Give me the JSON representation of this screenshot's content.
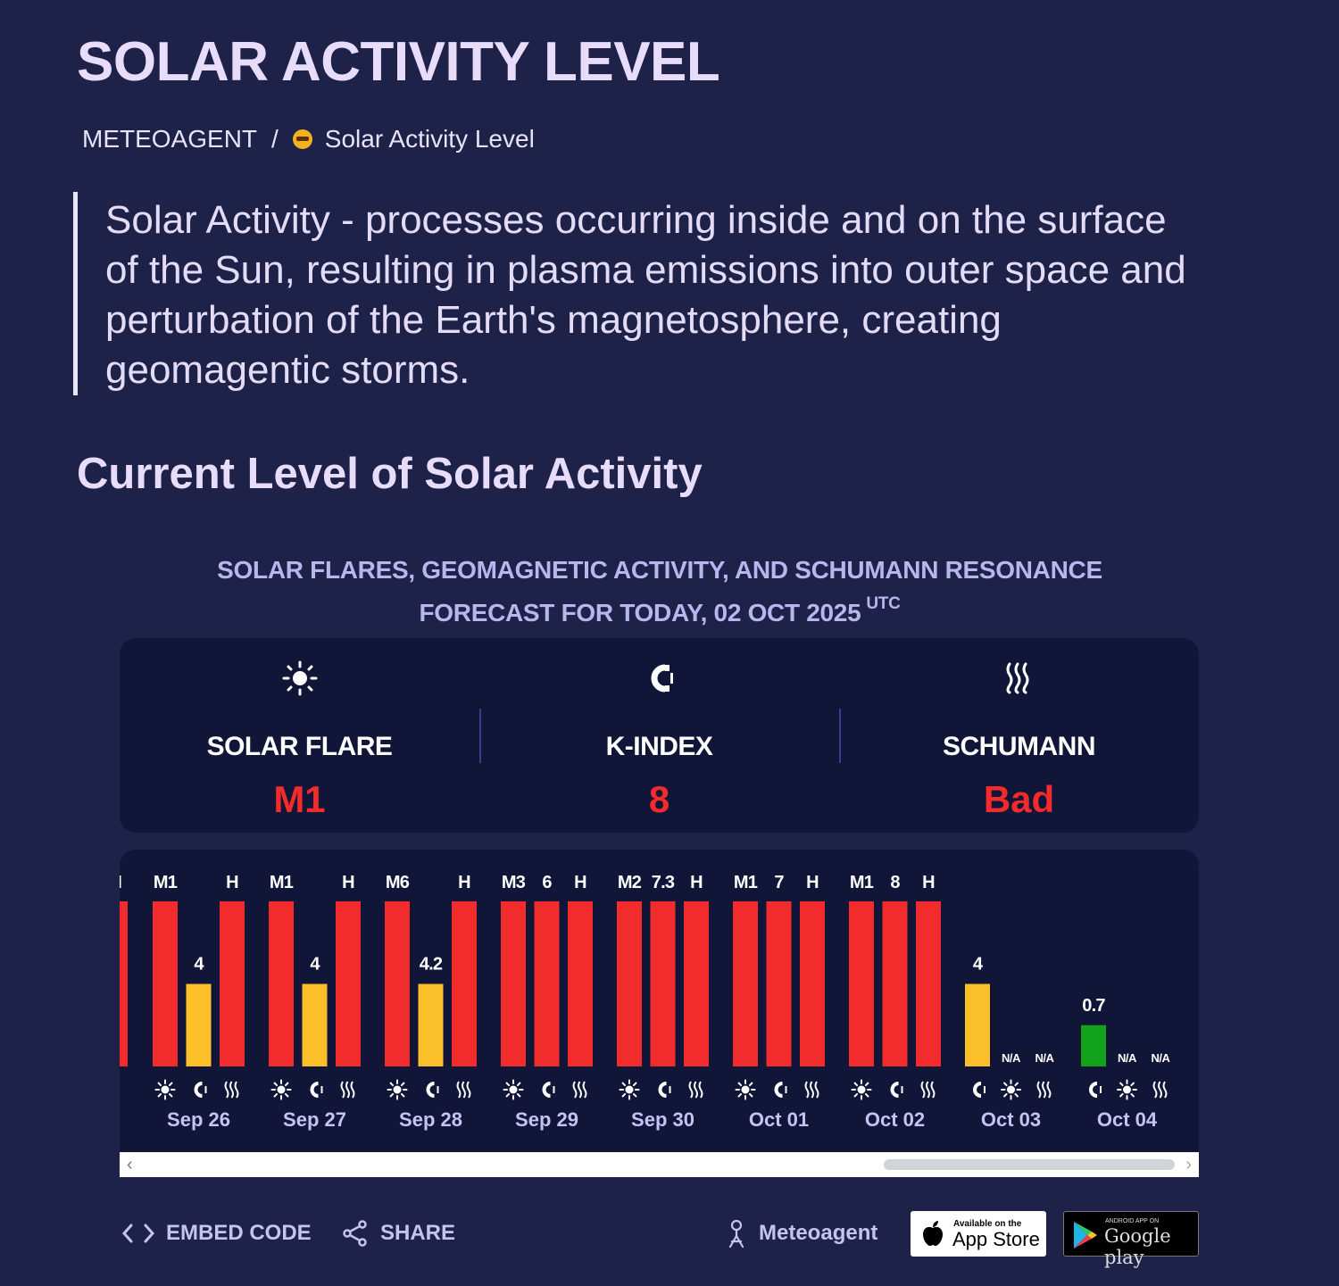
{
  "header": {
    "title": "SOLAR ACTIVITY LEVEL",
    "breadcrumb": [
      "METEOAGENT",
      "/",
      "Solar Activity Level"
    ]
  },
  "intro": "Solar Activity - processes occurring inside and on the surface of the Sun, resulting in plasma emissions into outer space and perturbation of the Earth's magnetosphere, creating geomagentic storms.",
  "section_title": "Current Level of Solar Activity",
  "forecast": {
    "title_line1": "SOLAR FLARES, GEOMAGNETIC ACTIVITY, AND SCHUMANN RESONANCE",
    "title_line2": "FORECAST FOR TODAY, 02 OCT 2025",
    "tz": "UTC"
  },
  "summary": [
    {
      "label": "SOLAR FLARE",
      "value": "M1",
      "icon": "sun-icon"
    },
    {
      "label": "K-INDEX",
      "value": "8",
      "icon": "magnet-icon"
    },
    {
      "label": "SCHUMANN",
      "value": "Bad",
      "icon": "waves-icon"
    }
  ],
  "chart_data": {
    "type": "bar",
    "series_types": [
      "solar-flare",
      "k-index",
      "schumann"
    ],
    "colors": {
      "high": "#f22c2c",
      "medium": "#fbbf2a",
      "low": "#13a31a",
      "label": "#ffffff",
      "text": "#c4c3f2"
    },
    "days": [
      {
        "date": "Sep 26",
        "bars": [
          {
            "kind": "solar-flare",
            "label": "M1",
            "level": 1.0,
            "color": "high"
          },
          {
            "kind": "k-index",
            "label": "4",
            "level": 0.5,
            "color": "medium"
          },
          {
            "kind": "schumann",
            "label": "H",
            "level": 1.0,
            "color": "high"
          }
        ]
      },
      {
        "date": "Sep 27",
        "bars": [
          {
            "kind": "solar-flare",
            "label": "M1",
            "level": 1.0,
            "color": "high"
          },
          {
            "kind": "k-index",
            "label": "4",
            "level": 0.5,
            "color": "medium"
          },
          {
            "kind": "schumann",
            "label": "H",
            "level": 1.0,
            "color": "high"
          }
        ]
      },
      {
        "date": "Sep 28",
        "bars": [
          {
            "kind": "solar-flare",
            "label": "M6",
            "level": 1.0,
            "color": "high"
          },
          {
            "kind": "k-index",
            "label": "4.2",
            "level": 0.5,
            "color": "medium"
          },
          {
            "kind": "schumann",
            "label": "H",
            "level": 1.0,
            "color": "high"
          }
        ]
      },
      {
        "date": "Sep 29",
        "bars": [
          {
            "kind": "solar-flare",
            "label": "M3",
            "level": 1.0,
            "color": "high"
          },
          {
            "kind": "k-index",
            "label": "6",
            "level": 1.0,
            "color": "high"
          },
          {
            "kind": "schumann",
            "label": "H",
            "level": 1.0,
            "color": "high"
          }
        ]
      },
      {
        "date": "Sep 30",
        "bars": [
          {
            "kind": "solar-flare",
            "label": "M2",
            "level": 1.0,
            "color": "high"
          },
          {
            "kind": "k-index",
            "label": "7.3",
            "level": 1.0,
            "color": "high"
          },
          {
            "kind": "schumann",
            "label": "H",
            "level": 1.0,
            "color": "high"
          }
        ]
      },
      {
        "date": "Oct 01",
        "bars": [
          {
            "kind": "solar-flare",
            "label": "M1",
            "level": 1.0,
            "color": "high"
          },
          {
            "kind": "k-index",
            "label": "7",
            "level": 1.0,
            "color": "high"
          },
          {
            "kind": "schumann",
            "label": "H",
            "level": 1.0,
            "color": "high"
          }
        ]
      },
      {
        "date": "Oct 02",
        "bars": [
          {
            "kind": "solar-flare",
            "label": "M1",
            "level": 1.0,
            "color": "high"
          },
          {
            "kind": "k-index",
            "label": "8",
            "level": 1.0,
            "color": "high"
          },
          {
            "kind": "schumann",
            "label": "H",
            "level": 1.0,
            "color": "high"
          }
        ]
      },
      {
        "date": "Oct 03",
        "bars": [
          {
            "kind": "k-index",
            "label": "4",
            "level": 0.5,
            "color": "medium"
          },
          {
            "kind": "solar-flare",
            "label": "N/A",
            "level": 0,
            "color": "high"
          },
          {
            "kind": "schumann",
            "label": "N/A",
            "level": 0,
            "color": "high"
          }
        ]
      },
      {
        "date": "Oct 04",
        "bars": [
          {
            "kind": "k-index",
            "label": "0.7",
            "level": 0.25,
            "color": "low"
          },
          {
            "kind": "solar-flare",
            "label": "N/A",
            "level": 0,
            "color": "high"
          },
          {
            "kind": "schumann",
            "label": "N/A",
            "level": 0,
            "color": "high"
          }
        ]
      }
    ],
    "partial_left": {
      "label": "I",
      "level": 1.0,
      "color": "high"
    }
  },
  "footer": {
    "embed_label": "EMBED CODE",
    "share_label": "SHARE",
    "brand_label": "Meteoagent",
    "appstore_small": "Available on the",
    "appstore_big": "App Store",
    "gplay_small": "ANDROID APP ON",
    "gplay_big": "Google play"
  }
}
